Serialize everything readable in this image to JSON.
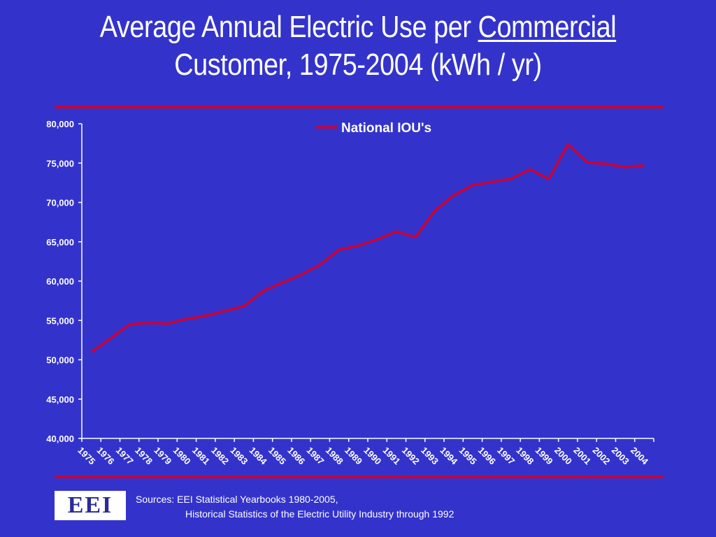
{
  "header": {
    "title_part1": "Average Annual Electric Use per ",
    "title_underlined": "Commercial",
    "title_line2": "Customer, 1975-2004 (kWh / yr)"
  },
  "footer": {
    "logo_text": "EEI",
    "sources_line1": "Sources: EEI Statistical Yearbooks 1980-2005,",
    "sources_line2": "Historical Statistics of the Electric Utility Industry through 1992"
  },
  "colors": {
    "background": "#3333cc",
    "line": "#cc0033",
    "rule": "#cc0033",
    "text": "#ffffff"
  },
  "chart_data": {
    "type": "line",
    "title": "",
    "xlabel": "",
    "ylabel": "",
    "ylim": [
      40000,
      80000
    ],
    "y_ticks": [
      40000,
      45000,
      50000,
      55000,
      60000,
      65000,
      70000,
      75000,
      80000
    ],
    "y_tick_labels": [
      "40,000",
      "45,000",
      "50,000",
      "55,000",
      "60,000",
      "65,000",
      "70,000",
      "75,000",
      "80,000"
    ],
    "grid": false,
    "legend_position": "top-center",
    "categories": [
      "1975",
      "1976",
      "1977",
      "1978",
      "1979",
      "1980",
      "1981",
      "1982",
      "1983",
      "1984",
      "1985",
      "1986",
      "1987",
      "1988",
      "1989",
      "1990",
      "1991",
      "1992",
      "1993",
      "1994",
      "1995",
      "1996",
      "1997",
      "1998",
      "1999",
      "2000",
      "2001",
      "2002",
      "2003",
      "2004"
    ],
    "series": [
      {
        "name": "National IOU's",
        "values": [
          51000,
          52700,
          54500,
          54700,
          54600,
          55200,
          55600,
          56200,
          56800,
          58700,
          59800,
          60800,
          62100,
          64000,
          64500,
          65300,
          66300,
          65600,
          68900,
          70900,
          72200,
          72600,
          73000,
          74200,
          73000,
          77400,
          75100,
          74900,
          74500,
          74700
        ]
      }
    ]
  }
}
